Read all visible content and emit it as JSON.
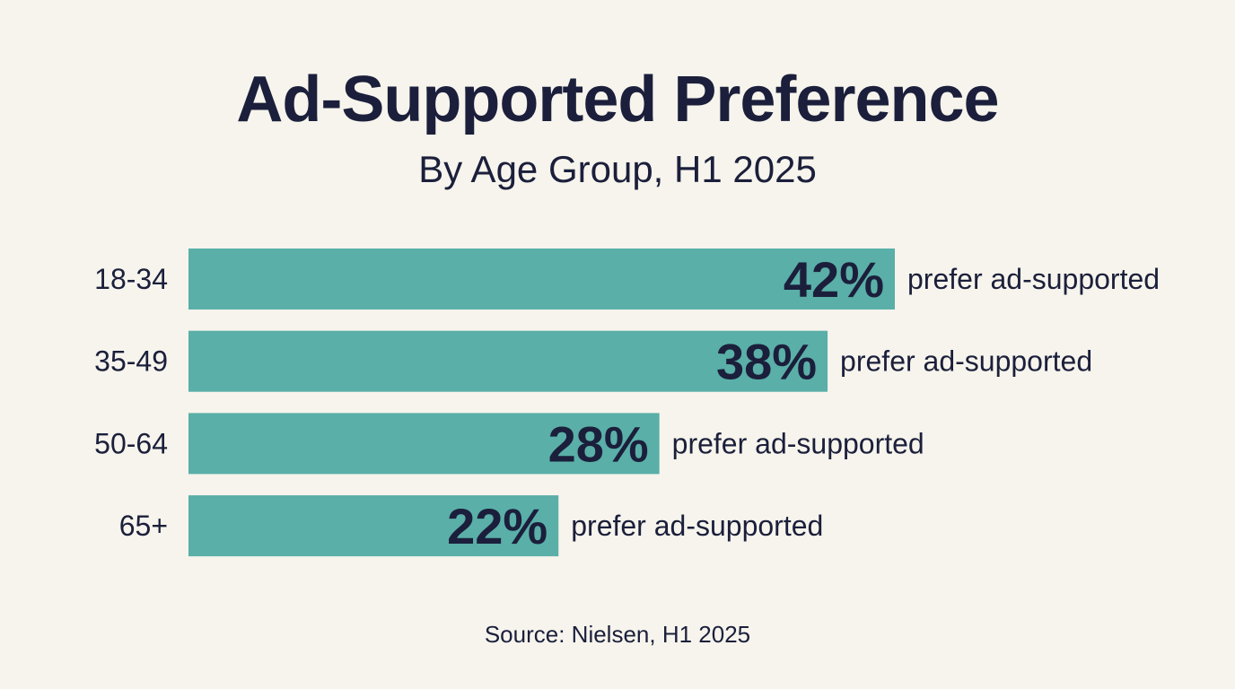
{
  "chart_data": {
    "type": "bar",
    "orientation": "horizontal",
    "title": "Ad-Supported Preference",
    "subtitle": "By Age Group, H1 2025",
    "categories": [
      "18-34",
      "35-49",
      "50-64",
      "65+"
    ],
    "values": [
      42,
      38,
      28,
      22
    ],
    "data_labels": [
      "42%",
      "38%",
      "28%",
      "22%"
    ],
    "annotation": "prefer ad-supported",
    "unit": "%",
    "xlim": [
      0,
      42
    ],
    "grid": false,
    "colors": {
      "bar": "#5aafa8",
      "text": "#1b1f3b",
      "background": "#f6f4ec"
    },
    "source": "Source: Nielsen, H1 2025"
  }
}
